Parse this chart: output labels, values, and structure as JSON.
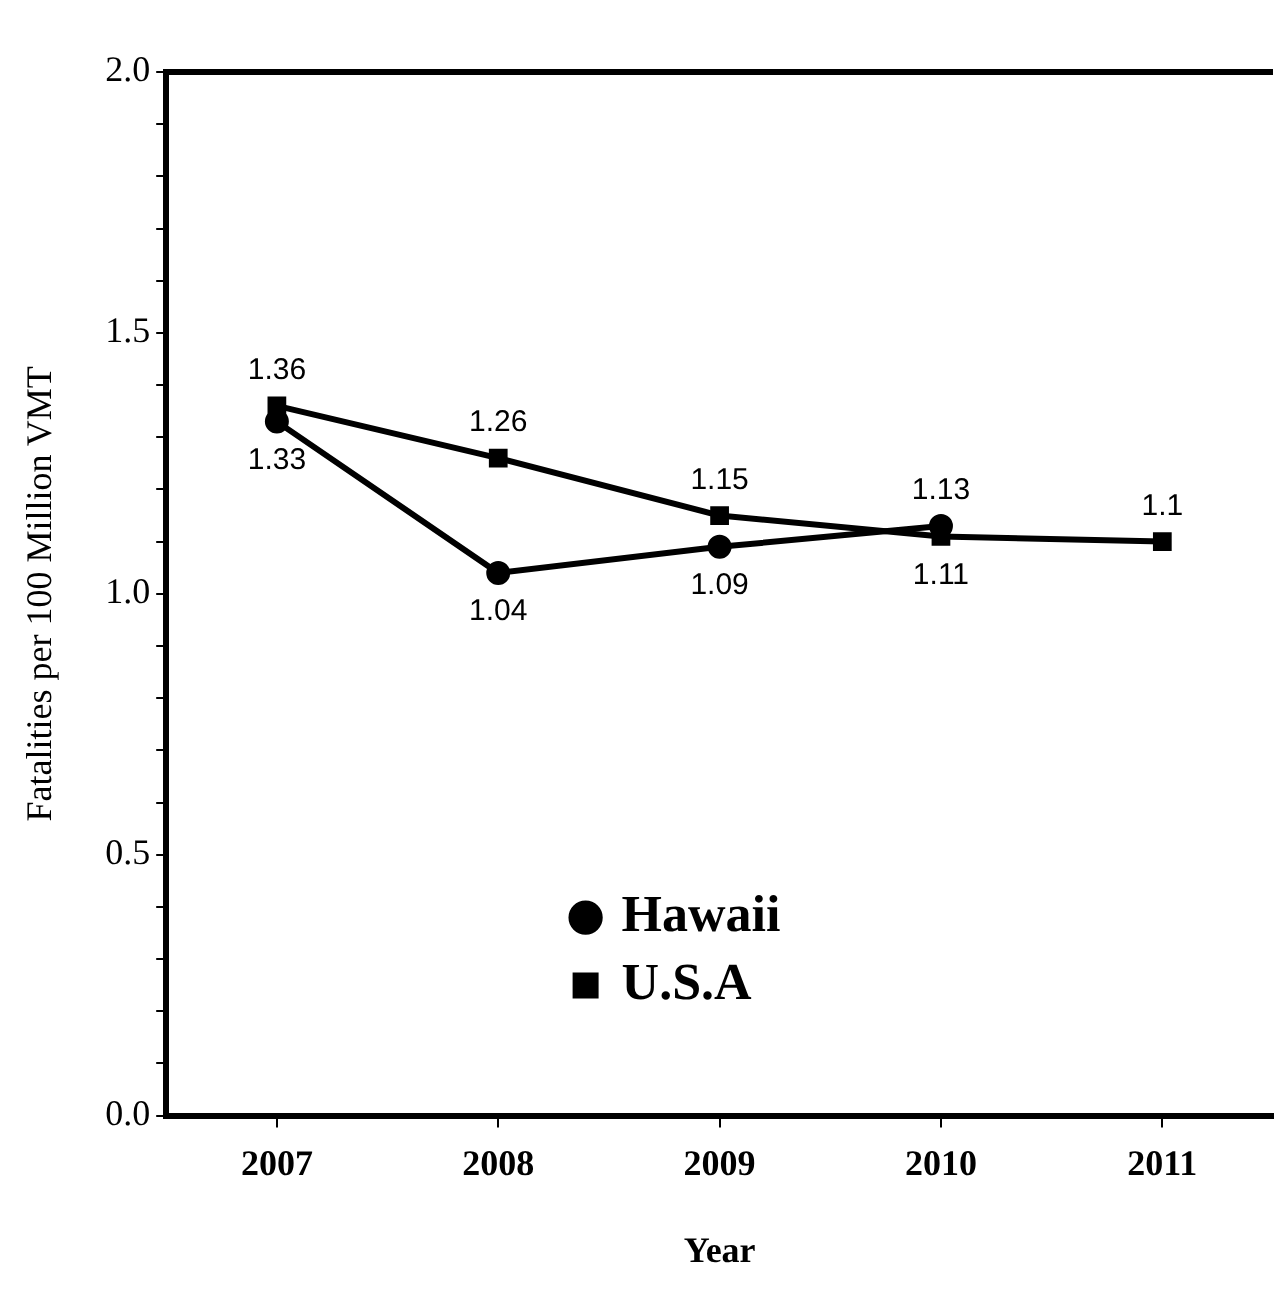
{
  "chart_data": {
    "type": "line",
    "xlabel": "Year",
    "ylabel": "Fatalities per 100 Million VMT",
    "categories": [
      "2007",
      "2008",
      "2009",
      "2010",
      "2011"
    ],
    "series": [
      {
        "name": "Hawaii",
        "color": "#000000",
        "marker": "circle",
        "values": [
          1.33,
          1.04,
          1.09,
          1.13,
          null
        ],
        "value_labels": [
          "1.33",
          "1.04",
          "1.09",
          "1.13",
          null
        ]
      },
      {
        "name": "U.S.A",
        "color": "#000000",
        "marker": "square",
        "values": [
          1.36,
          1.26,
          1.15,
          1.11,
          1.1
        ],
        "value_labels": [
          "1.36",
          "1.26",
          "1.15",
          "1.11",
          "1.1"
        ]
      }
    ],
    "ylim": [
      0,
      2
    ],
    "yticks": [
      {
        "value": 0,
        "label": "0.0"
      },
      {
        "value": 0.1,
        "label": null
      },
      {
        "value": 0.2,
        "label": null
      },
      {
        "value": 0.3,
        "label": null
      },
      {
        "value": 0.4,
        "label": null
      },
      {
        "value": 0.5,
        "label": "0.5"
      },
      {
        "value": 0.6,
        "label": null
      },
      {
        "value": 0.7,
        "label": null
      },
      {
        "value": 0.8,
        "label": null
      },
      {
        "value": 0.9,
        "label": null
      },
      {
        "value": 1,
        "label": "1.0"
      },
      {
        "value": 1.1,
        "label": null
      },
      {
        "value": 1.2,
        "label": null
      },
      {
        "value": 1.3,
        "label": null
      },
      {
        "value": 1.4,
        "label": null
      },
      {
        "value": 1.5,
        "label": "1.5"
      },
      {
        "value": 1.6,
        "label": null
      },
      {
        "value": 1.7,
        "label": null
      },
      {
        "value": 1.8,
        "label": null
      },
      {
        "value": 1.9,
        "label": null
      },
      {
        "value": 2,
        "label": "2.0"
      }
    ],
    "grid": false,
    "legend": "bottom",
    "line_style": "solid"
  }
}
